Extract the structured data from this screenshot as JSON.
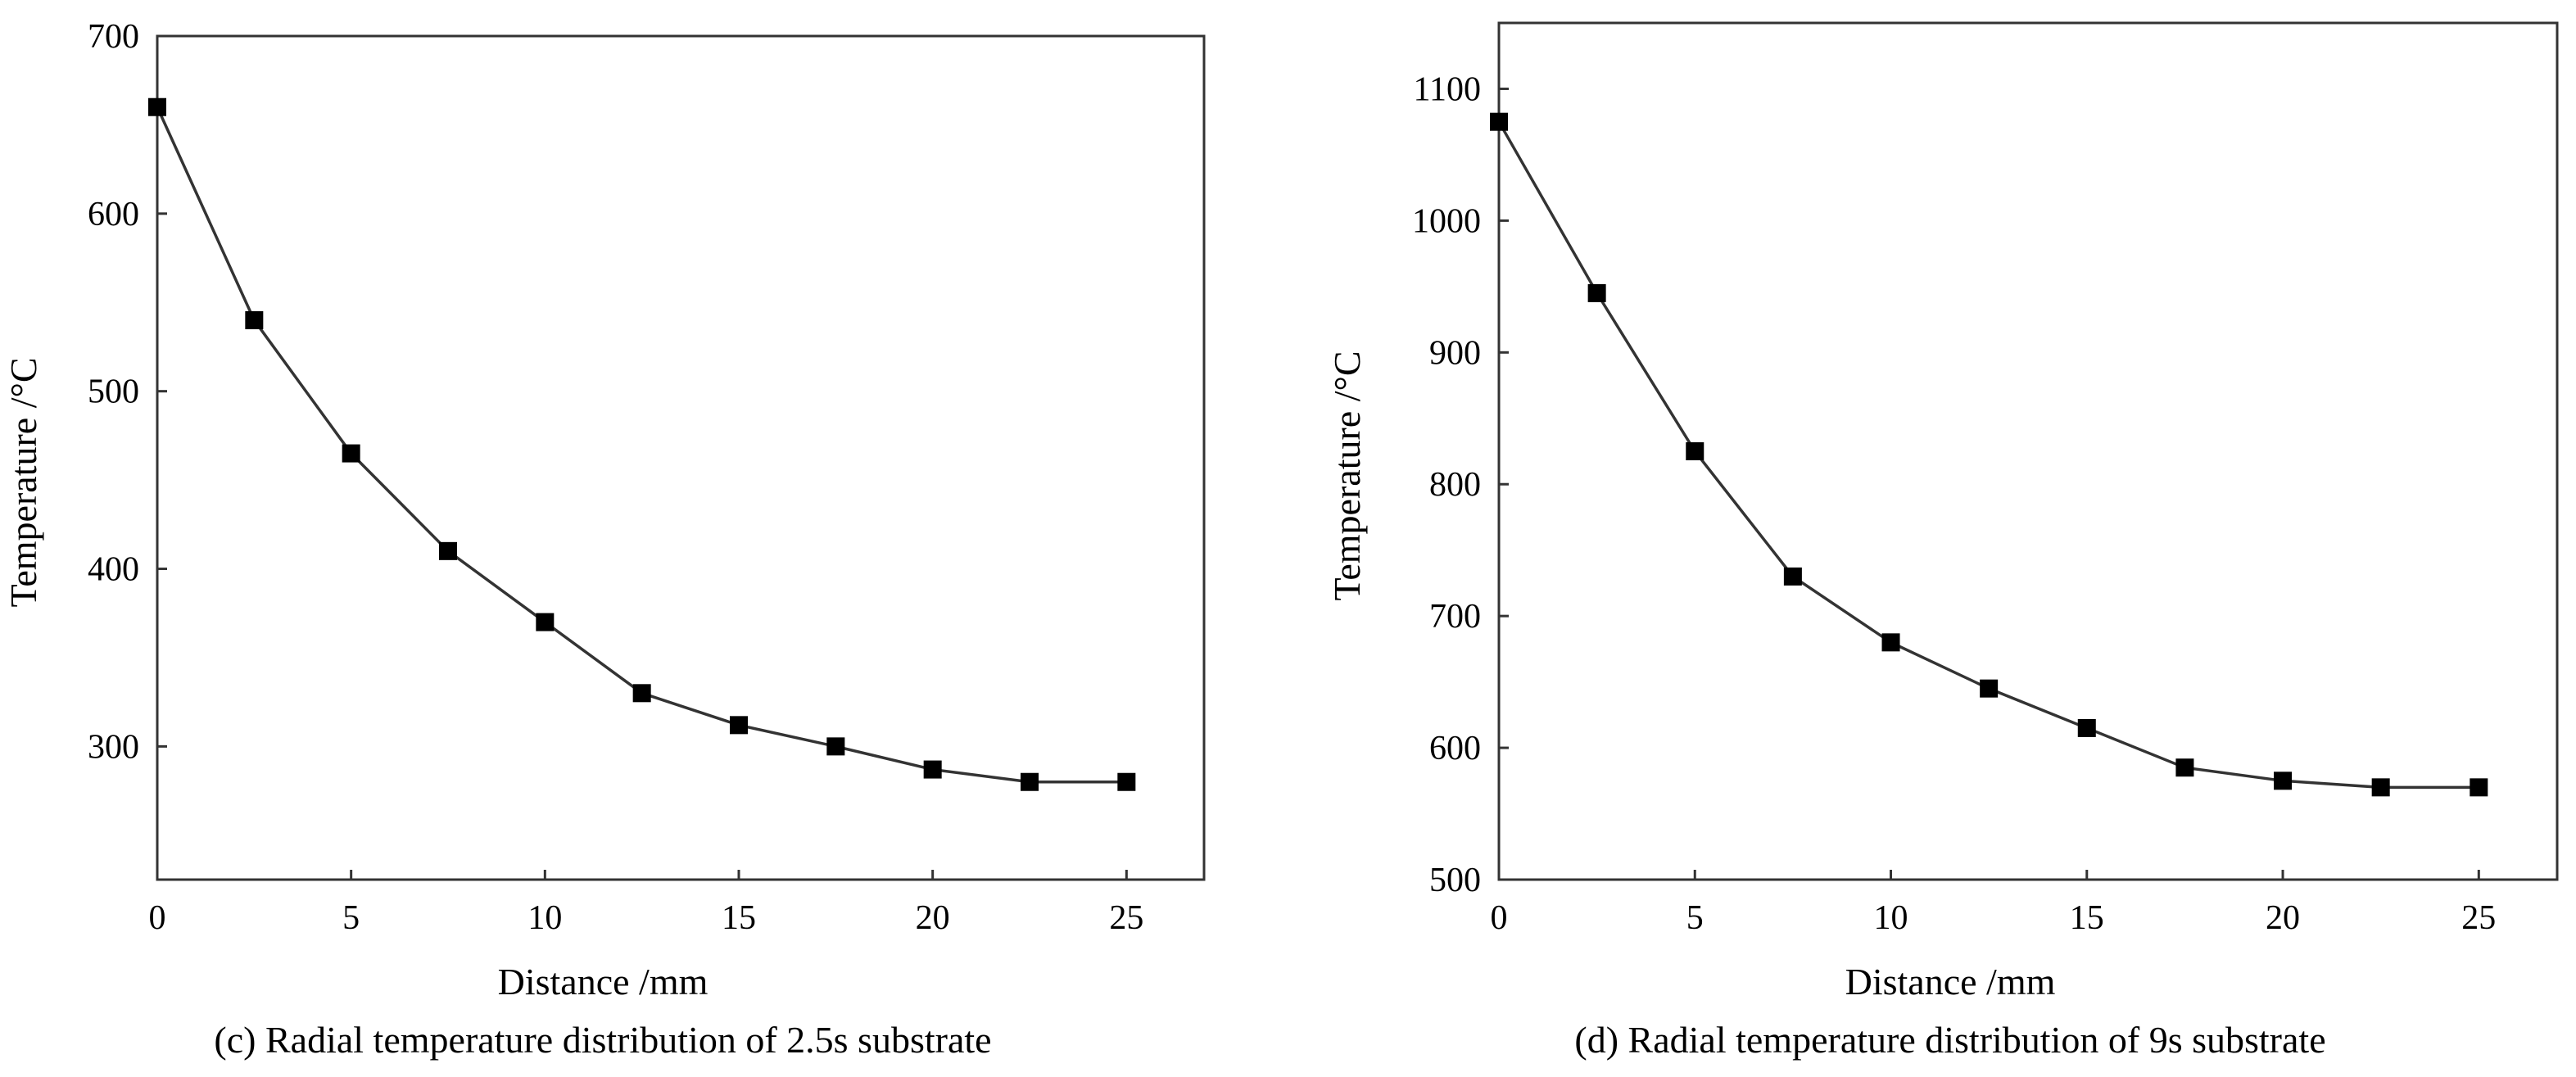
{
  "chart_data": [
    {
      "type": "line",
      "marker": "square",
      "caption": "(c) Radial temperature distribution of 2.5s substrate",
      "xlabel": "Distance /mm",
      "ylabel": "Temperature /°C",
      "xlim": [
        0,
        27
      ],
      "ylim": [
        225,
        700
      ],
      "xticks": [
        0,
        5,
        10,
        15,
        20,
        25
      ],
      "yticks": [
        300,
        400,
        500,
        600,
        700
      ],
      "grid": false,
      "series": [
        {
          "name": "2.5s substrate",
          "x": [
            0,
            2.5,
            5,
            7.5,
            10,
            12.5,
            15,
            17.5,
            20,
            22.5,
            25
          ],
          "y": [
            660,
            540,
            465,
            410,
            370,
            330,
            312,
            300,
            287,
            280,
            280
          ]
        }
      ]
    },
    {
      "type": "line",
      "marker": "square",
      "caption": "(d) Radial temperature distribution of 9s substrate",
      "xlabel": "Distance /mm",
      "ylabel": "Temperature /°C",
      "xlim": [
        0,
        27
      ],
      "ylim": [
        500,
        1150
      ],
      "xticks": [
        0,
        5,
        10,
        15,
        20,
        25
      ],
      "yticks": [
        500,
        600,
        700,
        800,
        900,
        1000,
        1100
      ],
      "grid": false,
      "series": [
        {
          "name": "9s substrate",
          "x": [
            0,
            2.5,
            5,
            7.5,
            10,
            12.5,
            15,
            17.5,
            20,
            22.5,
            25
          ],
          "y": [
            1075,
            945,
            825,
            730,
            680,
            645,
            615,
            585,
            575,
            570,
            570
          ]
        }
      ]
    }
  ]
}
